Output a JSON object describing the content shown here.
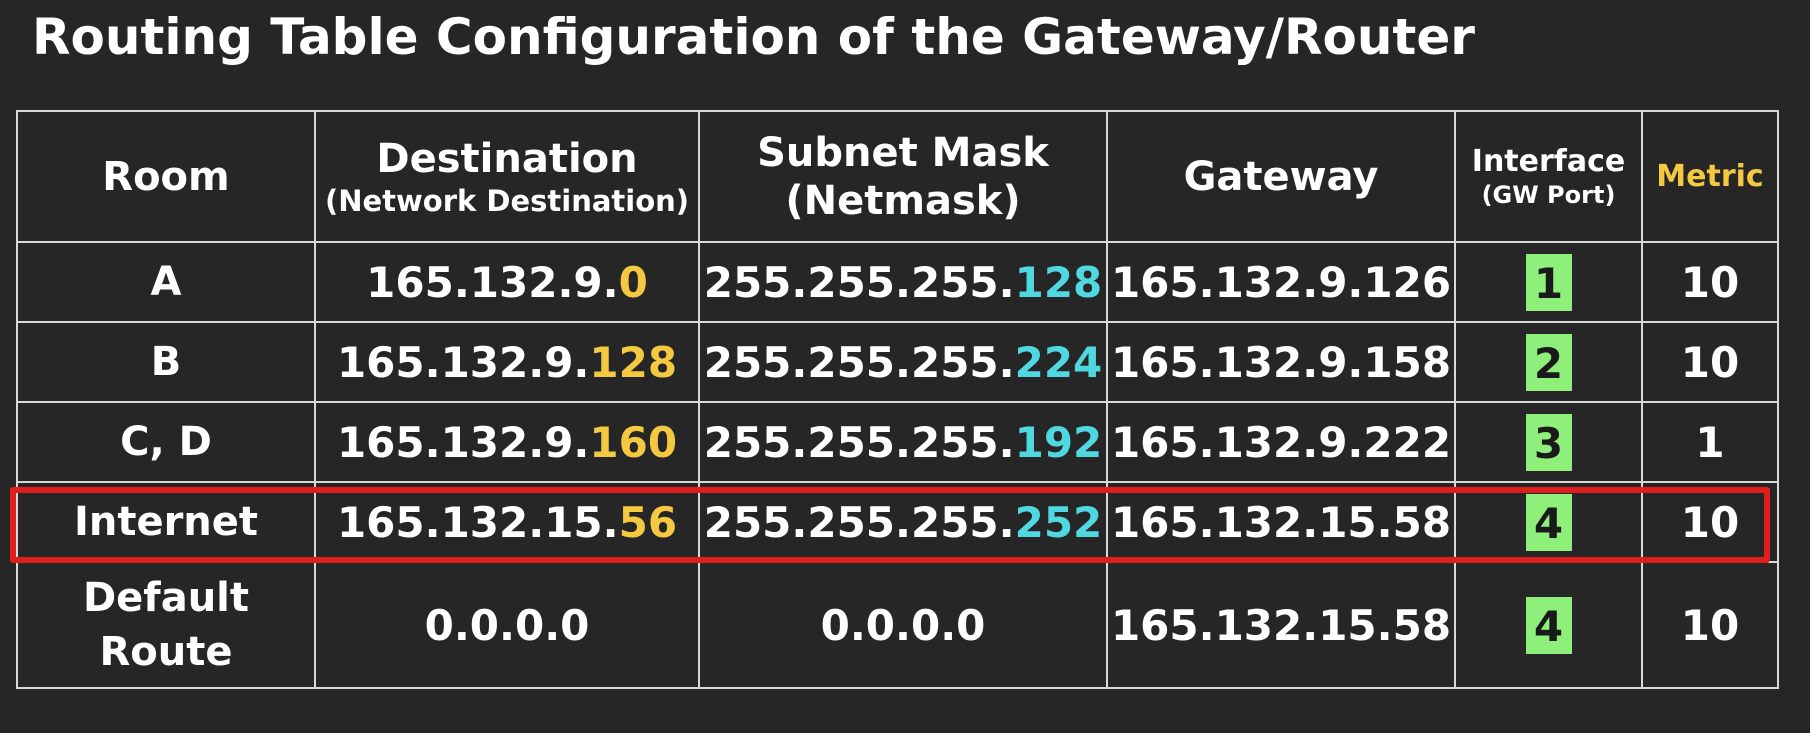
{
  "title": "Routing Table Configuration of the Gateway/Router",
  "colors": {
    "background": "#262626",
    "border": "#d8d8d8",
    "text": "#ffffff",
    "destination_highlight": "#f5c842",
    "mask_highlight": "#4fd8e0",
    "interface_badge": "#8ef07a",
    "metric_header": "#f5c842",
    "row_highlight_box": "#e01e1e"
  },
  "headers": {
    "room": "Room",
    "destination": "Destination",
    "destination_sub": "(Network Destination)",
    "mask": "Subnet Mask",
    "mask_sub": "(Netmask)",
    "gateway": "Gateway",
    "interface": "Interface",
    "interface_sub": "(GW Port)",
    "metric": "Metric"
  },
  "rows": [
    {
      "room": "A",
      "dest_prefix": "165.132.9.",
      "dest_suffix": "0",
      "mask_prefix": "255.255.255.",
      "mask_suffix": "128",
      "gateway": "165.132.9.126",
      "interface": "1",
      "metric": "10"
    },
    {
      "room": "B",
      "dest_prefix": "165.132.9.",
      "dest_suffix": "128",
      "mask_prefix": "255.255.255.",
      "mask_suffix": "224",
      "gateway": "165.132.9.158",
      "interface": "2",
      "metric": "10"
    },
    {
      "room": "C, D",
      "dest_prefix": "165.132.9.",
      "dest_suffix": "160",
      "mask_prefix": "255.255.255.",
      "mask_suffix": "192",
      "gateway": "165.132.9.222",
      "interface": "3",
      "metric": "1"
    },
    {
      "room": "Internet",
      "dest_prefix": "165.132.15.",
      "dest_suffix": "56",
      "mask_prefix": "255.255.255.",
      "mask_suffix": "252",
      "gateway": "165.132.15.58",
      "interface": "4",
      "metric": "10",
      "highlighted": true
    },
    {
      "room_line1": "Default",
      "room_line2": "Route",
      "destination": "0.0.0.0",
      "mask": "0.0.0.0",
      "gateway": "165.132.15.58",
      "interface": "4",
      "metric": "10"
    }
  ]
}
